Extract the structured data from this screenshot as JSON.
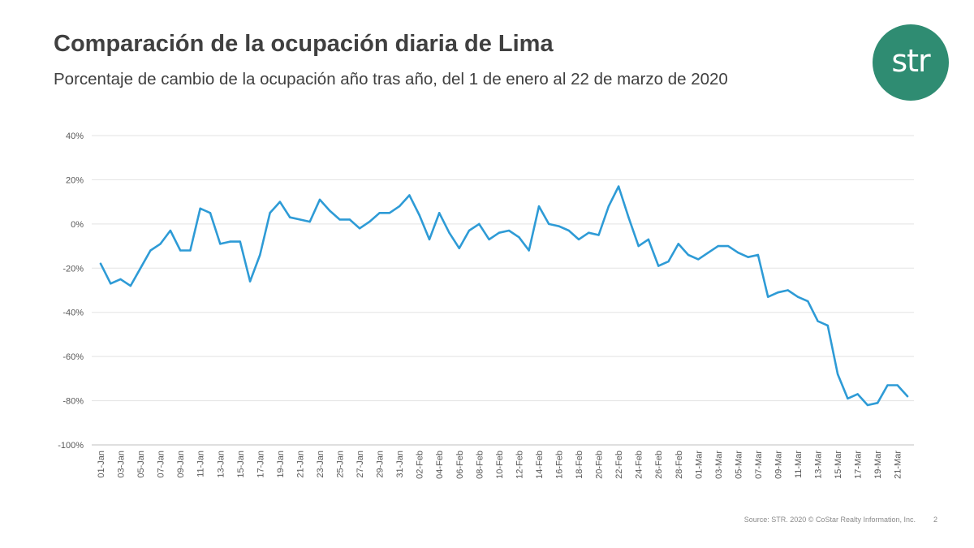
{
  "header": {
    "title": "Comparación de la ocupación diaria de Lima",
    "subtitle": "Porcentaje de cambio de la ocupación año tras año, del 1 de enero al 22 de marzo de 2020"
  },
  "logo": {
    "text": "str",
    "color": "#2f8c72"
  },
  "footer": {
    "source": "Source: STR. 2020 © CoStar Realty Information, Inc.",
    "page": "2"
  },
  "chart_data": {
    "type": "line",
    "title": "",
    "xlabel": "",
    "ylabel": "",
    "ylim": [
      -100,
      40
    ],
    "y_ticks": [
      40,
      20,
      0,
      -20,
      -40,
      -60,
      -80,
      -100
    ],
    "y_tick_labels": [
      "40%",
      "20%",
      "0%",
      "-20%",
      "-40%",
      "-60%",
      "-80%",
      "-100%"
    ],
    "grid": true,
    "legend": "none",
    "line_color": "#2e9bd6",
    "x": [
      "01-Jan",
      "02-Jan",
      "03-Jan",
      "04-Jan",
      "05-Jan",
      "06-Jan",
      "07-Jan",
      "08-Jan",
      "09-Jan",
      "10-Jan",
      "11-Jan",
      "12-Jan",
      "13-Jan",
      "14-Jan",
      "15-Jan",
      "16-Jan",
      "17-Jan",
      "18-Jan",
      "19-Jan",
      "20-Jan",
      "21-Jan",
      "22-Jan",
      "23-Jan",
      "24-Jan",
      "25-Jan",
      "26-Jan",
      "27-Jan",
      "28-Jan",
      "29-Jan",
      "30-Jan",
      "31-Jan",
      "01-Feb",
      "02-Feb",
      "03-Feb",
      "04-Feb",
      "05-Feb",
      "06-Feb",
      "07-Feb",
      "08-Feb",
      "09-Feb",
      "10-Feb",
      "11-Feb",
      "12-Feb",
      "13-Feb",
      "14-Feb",
      "15-Feb",
      "16-Feb",
      "17-Feb",
      "18-Feb",
      "19-Feb",
      "20-Feb",
      "21-Feb",
      "22-Feb",
      "23-Feb",
      "24-Feb",
      "25-Feb",
      "26-Feb",
      "27-Feb",
      "28-Feb",
      "29-Feb",
      "01-Mar",
      "02-Mar",
      "03-Mar",
      "04-Mar",
      "05-Mar",
      "06-Mar",
      "07-Mar",
      "08-Mar",
      "09-Mar",
      "10-Mar",
      "11-Mar",
      "12-Mar",
      "13-Mar",
      "14-Mar",
      "15-Mar",
      "16-Mar",
      "17-Mar",
      "18-Mar",
      "19-Mar",
      "20-Mar",
      "21-Mar",
      "22-Mar"
    ],
    "x_tick_labels": [
      "01-Jan",
      "03-Jan",
      "05-Jan",
      "07-Jan",
      "09-Jan",
      "11-Jan",
      "13-Jan",
      "15-Jan",
      "17-Jan",
      "19-Jan",
      "21-Jan",
      "23-Jan",
      "25-Jan",
      "27-Jan",
      "29-Jan",
      "31-Jan",
      "02-Feb",
      "04-Feb",
      "06-Feb",
      "08-Feb",
      "10-Feb",
      "12-Feb",
      "14-Feb",
      "16-Feb",
      "18-Feb",
      "20-Feb",
      "22-Feb",
      "24-Feb",
      "26-Feb",
      "28-Feb",
      "01-Mar",
      "03-Mar",
      "05-Mar",
      "07-Mar",
      "09-Mar",
      "11-Mar",
      "13-Mar",
      "15-Mar",
      "17-Mar",
      "19-Mar",
      "21-Mar"
    ],
    "values": [
      -18,
      -27,
      -25,
      -28,
      -20,
      -12,
      -9,
      -3,
      -12,
      -12,
      7,
      5,
      -9,
      -8,
      -8,
      -26,
      -14,
      5,
      10,
      3,
      2,
      1,
      11,
      6,
      2,
      2,
      -2,
      1,
      5,
      5,
      8,
      13,
      4,
      -7,
      5,
      -4,
      -11,
      -3,
      0,
      -7,
      -4,
      -3,
      -6,
      -12,
      8,
      0,
      -1,
      -3,
      -7,
      -4,
      -5,
      8,
      17,
      3,
      -10,
      -7,
      -19,
      -17,
      -9,
      -14,
      -16,
      -13,
      -10,
      -10,
      -13,
      -15,
      -14,
      -33,
      -31,
      -30,
      -33,
      -35,
      -44,
      -46,
      -68,
      -79,
      -77,
      -82,
      -81,
      -73,
      -73,
      -78
    ]
  }
}
